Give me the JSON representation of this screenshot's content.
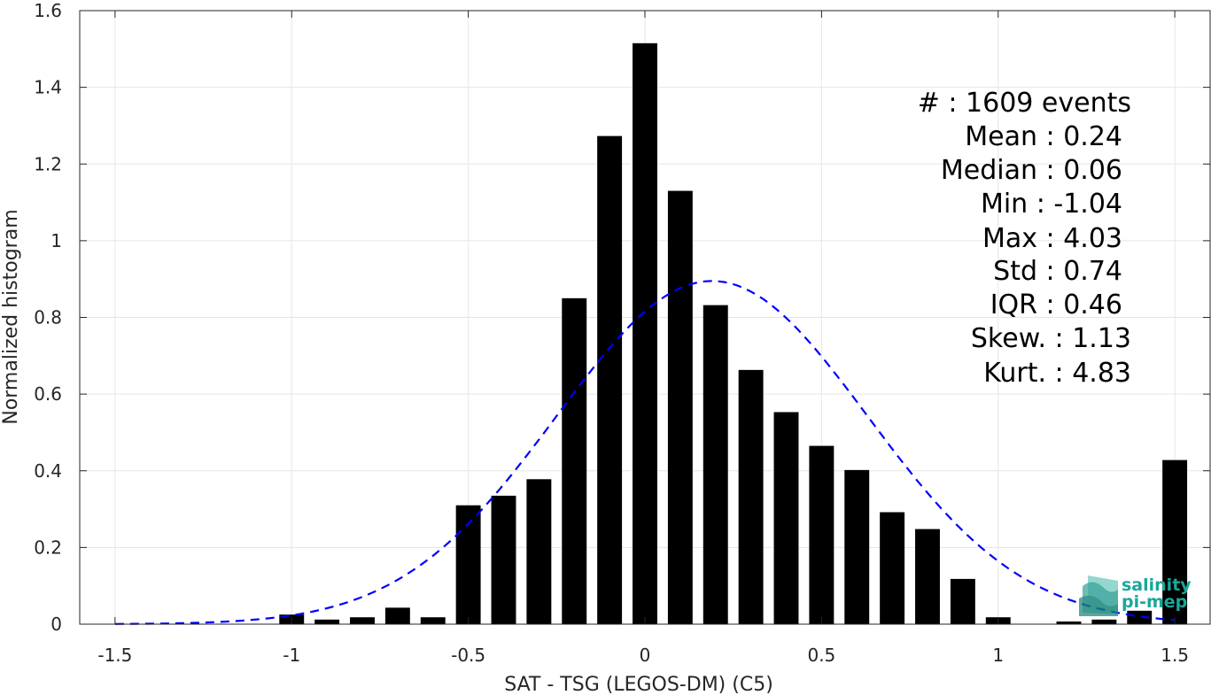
{
  "chart_data": {
    "type": "bar",
    "xlabel": "SAT - TSG (LEGOS-DM) (C5)",
    "ylabel": "Normalized histogram",
    "xlim": [
      -1.6,
      1.6
    ],
    "ylim": [
      0,
      1.6
    ],
    "xticks": [
      -1.5,
      -1,
      -0.5,
      0,
      0.5,
      1,
      1.5
    ],
    "xtick_labels": [
      "-1.5",
      "-1",
      "-0.5",
      "0",
      "0.5",
      "1",
      "1.5"
    ],
    "yticks": [
      0,
      0.2,
      0.4,
      0.6,
      0.8,
      1,
      1.2,
      1.4,
      1.6
    ],
    "ytick_labels": [
      "0",
      "0.2",
      "0.4",
      "0.6",
      "0.8",
      "1",
      "1.2",
      "1.4",
      "1.6"
    ],
    "grid": true,
    "bar_width": 0.07,
    "bar_color": "#000000",
    "bins": [
      {
        "x": -1.0,
        "y": 0.025
      },
      {
        "x": -0.9,
        "y": 0.012
      },
      {
        "x": -0.8,
        "y": 0.018
      },
      {
        "x": -0.7,
        "y": 0.043
      },
      {
        "x": -0.6,
        "y": 0.018
      },
      {
        "x": -0.5,
        "y": 0.31
      },
      {
        "x": -0.4,
        "y": 0.335
      },
      {
        "x": -0.3,
        "y": 0.378
      },
      {
        "x": -0.2,
        "y": 0.85
      },
      {
        "x": -0.1,
        "y": 1.273
      },
      {
        "x": 0.0,
        "y": 1.515
      },
      {
        "x": 0.1,
        "y": 1.13
      },
      {
        "x": 0.2,
        "y": 0.832
      },
      {
        "x": 0.3,
        "y": 0.663
      },
      {
        "x": 0.4,
        "y": 0.553
      },
      {
        "x": 0.5,
        "y": 0.465
      },
      {
        "x": 0.6,
        "y": 0.402
      },
      {
        "x": 0.7,
        "y": 0.292
      },
      {
        "x": 0.8,
        "y": 0.248
      },
      {
        "x": 0.9,
        "y": 0.118
      },
      {
        "x": 1.0,
        "y": 0.018
      },
      {
        "x": 1.2,
        "y": 0.007
      },
      {
        "x": 1.3,
        "y": 0.012
      },
      {
        "x": 1.4,
        "y": 0.035
      },
      {
        "x": 1.5,
        "y": 0.428
      }
    ],
    "fit_curve": {
      "type": "normal",
      "mean": 0.19,
      "std": 0.44,
      "peak": 0.895,
      "x_range": [
        -1.5,
        1.5
      ],
      "color": "#0000ff",
      "style": "dashed"
    },
    "stats": [
      "#  : 1609 events",
      "Mean : 0.24",
      "Median : 0.06",
      "Min : -1.04",
      "Max : 4.03",
      "Std : 0.74",
      "IQR : 0.46",
      "Skew. : 1.13",
      "Kurt. : 4.83"
    ]
  },
  "logo": {
    "line1": "salinity",
    "line2": "pi-mep",
    "color": "#1aa79a"
  }
}
